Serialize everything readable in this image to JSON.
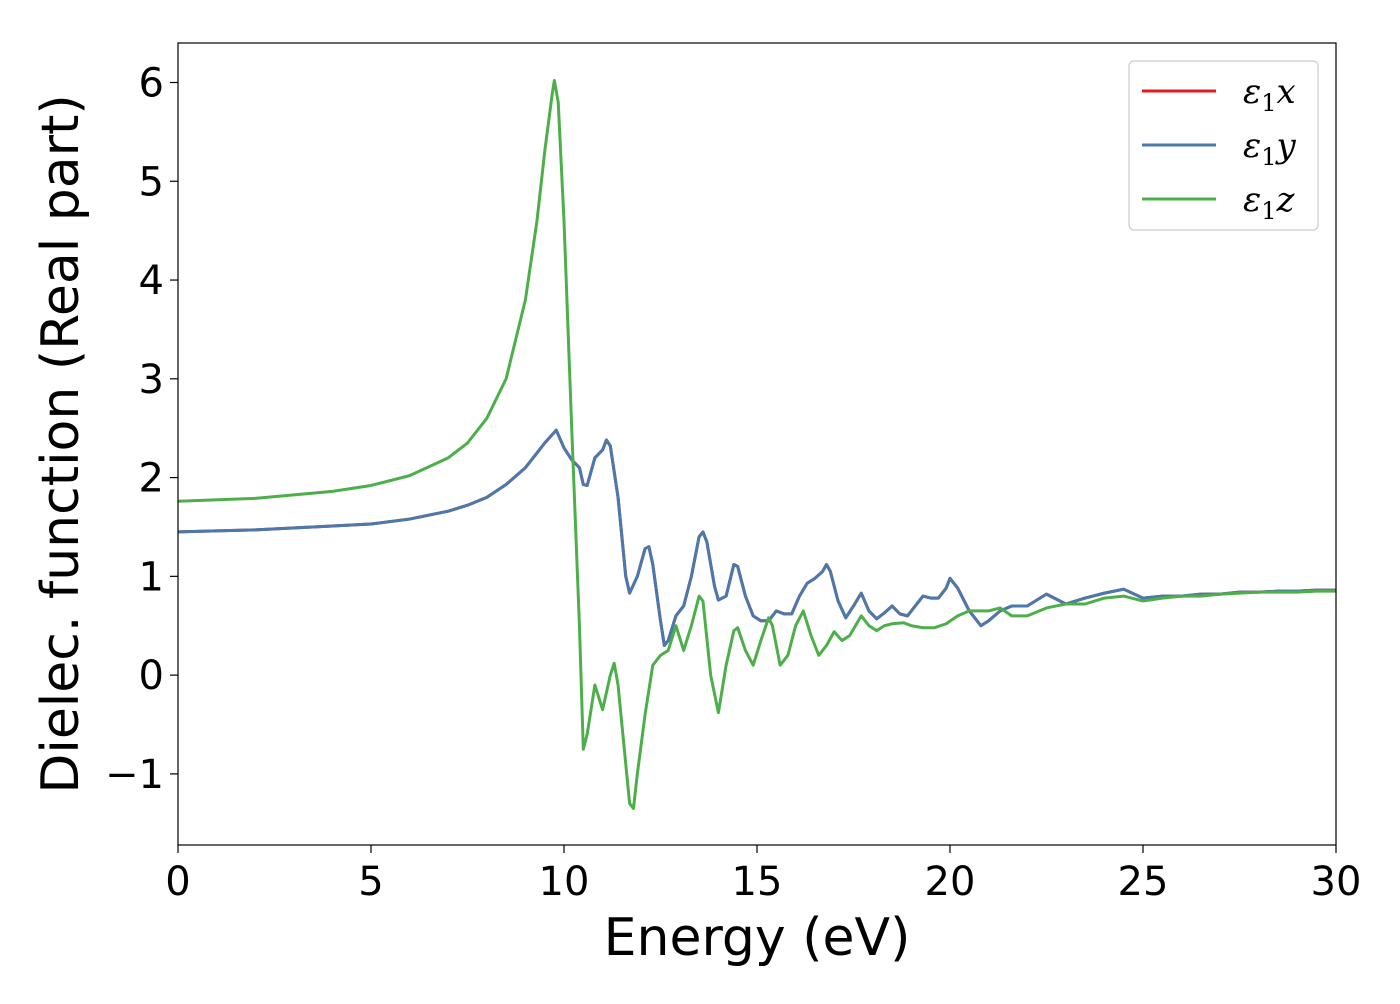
{
  "chart_data": {
    "type": "line",
    "title": "",
    "xlabel": "Energy (eV)",
    "ylabel": "Dielec. function (Real part)",
    "xlim": [
      0,
      30
    ],
    "ylim": [
      -1.72,
      6.4
    ],
    "xticks": [
      0,
      5,
      10,
      15,
      20,
      25,
      30
    ],
    "xtick_labels": [
      "0",
      "5",
      "10",
      "15",
      "20",
      "25",
      "30"
    ],
    "yticks": [
      -1,
      0,
      1,
      2,
      3,
      4,
      5,
      6
    ],
    "ytick_labels": [
      "−1",
      "0",
      "1",
      "2",
      "3",
      "4",
      "5",
      "6"
    ],
    "grid": false,
    "legend_position": "top-right",
    "series": [
      {
        "name": "ε₁x",
        "label_main": "ε",
        "label_sub": "1",
        "label_tail": "x",
        "color": "#e41a1c",
        "points": [
          [
            0,
            1.45
          ],
          [
            2,
            1.47
          ],
          [
            4,
            1.51
          ],
          [
            5,
            1.53
          ],
          [
            6,
            1.58
          ],
          [
            7,
            1.66
          ],
          [
            7.5,
            1.72
          ],
          [
            8,
            1.8
          ],
          [
            8.5,
            1.93
          ],
          [
            9,
            2.1
          ],
          [
            9.3,
            2.25
          ],
          [
            9.5,
            2.35
          ],
          [
            9.8,
            2.48
          ],
          [
            10.0,
            2.3
          ],
          [
            10.2,
            2.18
          ],
          [
            10.4,
            2.1
          ],
          [
            10.5,
            1.93
          ],
          [
            10.6,
            1.92
          ],
          [
            10.8,
            2.2
          ],
          [
            11.0,
            2.28
          ],
          [
            11.1,
            2.38
          ],
          [
            11.2,
            2.32
          ],
          [
            11.4,
            1.8
          ],
          [
            11.6,
            1.0
          ],
          [
            11.7,
            0.83
          ],
          [
            11.9,
            1.0
          ],
          [
            12.1,
            1.28
          ],
          [
            12.2,
            1.3
          ],
          [
            12.3,
            1.12
          ],
          [
            12.5,
            0.55
          ],
          [
            12.6,
            0.3
          ],
          [
            12.7,
            0.35
          ],
          [
            12.9,
            0.6
          ],
          [
            13.1,
            0.7
          ],
          [
            13.3,
            1.0
          ],
          [
            13.5,
            1.4
          ],
          [
            13.6,
            1.45
          ],
          [
            13.7,
            1.35
          ],
          [
            13.9,
            0.9
          ],
          [
            14.0,
            0.76
          ],
          [
            14.2,
            0.8
          ],
          [
            14.4,
            1.12
          ],
          [
            14.5,
            1.1
          ],
          [
            14.7,
            0.8
          ],
          [
            14.9,
            0.6
          ],
          [
            15.1,
            0.55
          ],
          [
            15.3,
            0.55
          ],
          [
            15.5,
            0.65
          ],
          [
            15.7,
            0.62
          ],
          [
            15.9,
            0.62
          ],
          [
            16.1,
            0.8
          ],
          [
            16.3,
            0.93
          ],
          [
            16.5,
            0.98
          ],
          [
            16.7,
            1.05
          ],
          [
            16.8,
            1.12
          ],
          [
            16.9,
            1.05
          ],
          [
            17.1,
            0.75
          ],
          [
            17.3,
            0.58
          ],
          [
            17.5,
            0.7
          ],
          [
            17.7,
            0.83
          ],
          [
            17.9,
            0.65
          ],
          [
            18.1,
            0.57
          ],
          [
            18.3,
            0.63
          ],
          [
            18.5,
            0.7
          ],
          [
            18.7,
            0.62
          ],
          [
            18.9,
            0.6
          ],
          [
            19.1,
            0.7
          ],
          [
            19.3,
            0.8
          ],
          [
            19.5,
            0.78
          ],
          [
            19.7,
            0.78
          ],
          [
            19.9,
            0.88
          ],
          [
            20.0,
            0.98
          ],
          [
            20.2,
            0.88
          ],
          [
            20.5,
            0.65
          ],
          [
            20.8,
            0.5
          ],
          [
            21.0,
            0.55
          ],
          [
            21.3,
            0.65
          ],
          [
            21.6,
            0.7
          ],
          [
            22.0,
            0.7
          ],
          [
            22.5,
            0.82
          ],
          [
            23.0,
            0.72
          ],
          [
            23.5,
            0.78
          ],
          [
            24.0,
            0.83
          ],
          [
            24.5,
            0.87
          ],
          [
            25.0,
            0.78
          ],
          [
            25.5,
            0.8
          ],
          [
            26.0,
            0.8
          ],
          [
            26.5,
            0.82
          ],
          [
            27.0,
            0.82
          ],
          [
            27.5,
            0.84
          ],
          [
            28.0,
            0.84
          ],
          [
            28.5,
            0.85
          ],
          [
            29.0,
            0.85
          ],
          [
            29.5,
            0.86
          ],
          [
            30.0,
            0.86
          ]
        ]
      },
      {
        "name": "ε₁y",
        "label_main": "ε",
        "label_sub": "1",
        "label_tail": "y",
        "color": "#4a7aad",
        "points": [
          [
            0,
            1.45
          ],
          [
            2,
            1.47
          ],
          [
            4,
            1.51
          ],
          [
            5,
            1.53
          ],
          [
            6,
            1.58
          ],
          [
            7,
            1.66
          ],
          [
            7.5,
            1.72
          ],
          [
            8,
            1.8
          ],
          [
            8.5,
            1.93
          ],
          [
            9,
            2.1
          ],
          [
            9.3,
            2.25
          ],
          [
            9.5,
            2.35
          ],
          [
            9.8,
            2.48
          ],
          [
            10.0,
            2.3
          ],
          [
            10.2,
            2.18
          ],
          [
            10.4,
            2.1
          ],
          [
            10.5,
            1.93
          ],
          [
            10.6,
            1.92
          ],
          [
            10.8,
            2.2
          ],
          [
            11.0,
            2.28
          ],
          [
            11.1,
            2.38
          ],
          [
            11.2,
            2.32
          ],
          [
            11.4,
            1.8
          ],
          [
            11.6,
            1.0
          ],
          [
            11.7,
            0.83
          ],
          [
            11.9,
            1.0
          ],
          [
            12.1,
            1.28
          ],
          [
            12.2,
            1.3
          ],
          [
            12.3,
            1.12
          ],
          [
            12.5,
            0.55
          ],
          [
            12.6,
            0.3
          ],
          [
            12.7,
            0.35
          ],
          [
            12.9,
            0.6
          ],
          [
            13.1,
            0.7
          ],
          [
            13.3,
            1.0
          ],
          [
            13.5,
            1.4
          ],
          [
            13.6,
            1.45
          ],
          [
            13.7,
            1.35
          ],
          [
            13.9,
            0.9
          ],
          [
            14.0,
            0.76
          ],
          [
            14.2,
            0.8
          ],
          [
            14.4,
            1.12
          ],
          [
            14.5,
            1.1
          ],
          [
            14.7,
            0.8
          ],
          [
            14.9,
            0.6
          ],
          [
            15.1,
            0.55
          ],
          [
            15.3,
            0.55
          ],
          [
            15.5,
            0.65
          ],
          [
            15.7,
            0.62
          ],
          [
            15.9,
            0.62
          ],
          [
            16.1,
            0.8
          ],
          [
            16.3,
            0.93
          ],
          [
            16.5,
            0.98
          ],
          [
            16.7,
            1.05
          ],
          [
            16.8,
            1.12
          ],
          [
            16.9,
            1.05
          ],
          [
            17.1,
            0.75
          ],
          [
            17.3,
            0.58
          ],
          [
            17.5,
            0.7
          ],
          [
            17.7,
            0.83
          ],
          [
            17.9,
            0.65
          ],
          [
            18.1,
            0.57
          ],
          [
            18.3,
            0.63
          ],
          [
            18.5,
            0.7
          ],
          [
            18.7,
            0.62
          ],
          [
            18.9,
            0.6
          ],
          [
            19.1,
            0.7
          ],
          [
            19.3,
            0.8
          ],
          [
            19.5,
            0.78
          ],
          [
            19.7,
            0.78
          ],
          [
            19.9,
            0.88
          ],
          [
            20.0,
            0.98
          ],
          [
            20.2,
            0.88
          ],
          [
            20.5,
            0.65
          ],
          [
            20.8,
            0.5
          ],
          [
            21.0,
            0.55
          ],
          [
            21.3,
            0.65
          ],
          [
            21.6,
            0.7
          ],
          [
            22.0,
            0.7
          ],
          [
            22.5,
            0.82
          ],
          [
            23.0,
            0.72
          ],
          [
            23.5,
            0.78
          ],
          [
            24.0,
            0.83
          ],
          [
            24.5,
            0.87
          ],
          [
            25.0,
            0.78
          ],
          [
            25.5,
            0.8
          ],
          [
            26.0,
            0.8
          ],
          [
            26.5,
            0.82
          ],
          [
            27.0,
            0.82
          ],
          [
            27.5,
            0.84
          ],
          [
            28.0,
            0.84
          ],
          [
            28.5,
            0.85
          ],
          [
            29.0,
            0.85
          ],
          [
            29.5,
            0.86
          ],
          [
            30.0,
            0.86
          ]
        ]
      },
      {
        "name": "ε₁z",
        "label_main": "ε",
        "label_sub": "1",
        "label_tail": "z",
        "color": "#4daf4a",
        "points": [
          [
            0,
            1.76
          ],
          [
            2,
            1.79
          ],
          [
            4,
            1.86
          ],
          [
            5,
            1.92
          ],
          [
            6,
            2.02
          ],
          [
            7,
            2.2
          ],
          [
            7.5,
            2.35
          ],
          [
            8,
            2.6
          ],
          [
            8.5,
            3.0
          ],
          [
            9.0,
            3.8
          ],
          [
            9.3,
            4.6
          ],
          [
            9.5,
            5.3
          ],
          [
            9.7,
            5.9
          ],
          [
            9.75,
            6.02
          ],
          [
            9.85,
            5.8
          ],
          [
            10.0,
            4.6
          ],
          [
            10.2,
            2.5
          ],
          [
            10.4,
            0.5
          ],
          [
            10.5,
            -0.75
          ],
          [
            10.6,
            -0.6
          ],
          [
            10.8,
            -0.1
          ],
          [
            11.0,
            -0.35
          ],
          [
            11.2,
            0.0
          ],
          [
            11.3,
            0.12
          ],
          [
            11.4,
            -0.1
          ],
          [
            11.6,
            -0.9
          ],
          [
            11.7,
            -1.3
          ],
          [
            11.8,
            -1.35
          ],
          [
            11.9,
            -1.0
          ],
          [
            12.1,
            -0.4
          ],
          [
            12.3,
            0.1
          ],
          [
            12.5,
            0.2
          ],
          [
            12.7,
            0.25
          ],
          [
            12.9,
            0.5
          ],
          [
            13.1,
            0.25
          ],
          [
            13.3,
            0.5
          ],
          [
            13.5,
            0.8
          ],
          [
            13.6,
            0.75
          ],
          [
            13.8,
            0.0
          ],
          [
            14.0,
            -0.38
          ],
          [
            14.2,
            0.1
          ],
          [
            14.4,
            0.45
          ],
          [
            14.5,
            0.48
          ],
          [
            14.7,
            0.25
          ],
          [
            14.9,
            0.1
          ],
          [
            15.1,
            0.35
          ],
          [
            15.3,
            0.58
          ],
          [
            15.4,
            0.5
          ],
          [
            15.6,
            0.1
          ],
          [
            15.8,
            0.2
          ],
          [
            16.0,
            0.5
          ],
          [
            16.2,
            0.65
          ],
          [
            16.4,
            0.4
          ],
          [
            16.6,
            0.2
          ],
          [
            16.8,
            0.3
          ],
          [
            17.0,
            0.44
          ],
          [
            17.2,
            0.35
          ],
          [
            17.4,
            0.4
          ],
          [
            17.7,
            0.6
          ],
          [
            17.9,
            0.5
          ],
          [
            18.1,
            0.45
          ],
          [
            18.3,
            0.5
          ],
          [
            18.5,
            0.52
          ],
          [
            18.8,
            0.53
          ],
          [
            19.0,
            0.5
          ],
          [
            19.3,
            0.48
          ],
          [
            19.6,
            0.48
          ],
          [
            19.9,
            0.52
          ],
          [
            20.2,
            0.6
          ],
          [
            20.5,
            0.65
          ],
          [
            20.8,
            0.65
          ],
          [
            21.0,
            0.65
          ],
          [
            21.3,
            0.68
          ],
          [
            21.6,
            0.6
          ],
          [
            22.0,
            0.6
          ],
          [
            22.5,
            0.68
          ],
          [
            23.0,
            0.72
          ],
          [
            23.5,
            0.72
          ],
          [
            24.0,
            0.78
          ],
          [
            24.5,
            0.8
          ],
          [
            25.0,
            0.75
          ],
          [
            25.5,
            0.78
          ],
          [
            26.0,
            0.8
          ],
          [
            26.5,
            0.8
          ],
          [
            27.0,
            0.82
          ],
          [
            27.5,
            0.83
          ],
          [
            28.0,
            0.84
          ],
          [
            28.5,
            0.84
          ],
          [
            29.0,
            0.84
          ],
          [
            29.5,
            0.85
          ],
          [
            30.0,
            0.85
          ]
        ]
      }
    ]
  }
}
